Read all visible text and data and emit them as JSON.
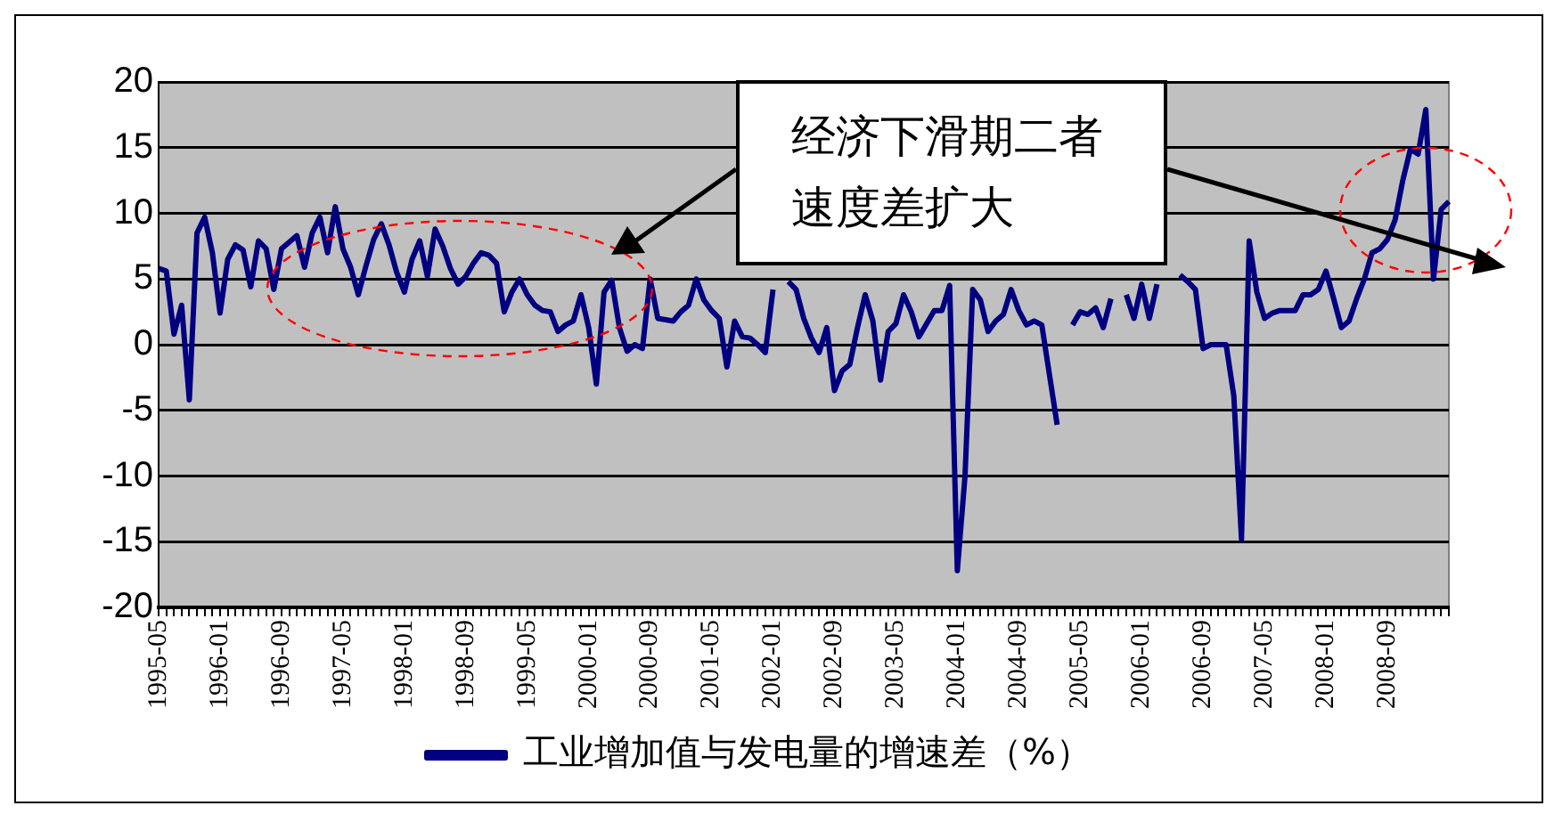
{
  "chart_data": {
    "type": "line",
    "categories": [
      "1995-05",
      null,
      null,
      null,
      null,
      null,
      null,
      null,
      "1996-01",
      null,
      null,
      null,
      null,
      null,
      null,
      null,
      "1996-09",
      null,
      null,
      null,
      null,
      null,
      null,
      null,
      "1997-05",
      null,
      null,
      null,
      null,
      null,
      null,
      null,
      "1998-01",
      null,
      null,
      null,
      null,
      null,
      null,
      null,
      "1998-09",
      null,
      null,
      null,
      null,
      null,
      null,
      null,
      "1999-05",
      null,
      null,
      null,
      null,
      null,
      null,
      null,
      "2000-01",
      null,
      null,
      null,
      null,
      null,
      null,
      null,
      "2000-09",
      null,
      null,
      null,
      null,
      null,
      null,
      null,
      "2001-05",
      null,
      null,
      null,
      null,
      null,
      null,
      null,
      "2002-01",
      null,
      null,
      null,
      null,
      null,
      null,
      null,
      "2002-09",
      null,
      null,
      null,
      null,
      null,
      null,
      null,
      "2003-05",
      null,
      null,
      null,
      null,
      null,
      null,
      null,
      "2004-01",
      null,
      null,
      null,
      null,
      null,
      null,
      null,
      "2004-09",
      null,
      null,
      null,
      null,
      null,
      null,
      null,
      "2005-05",
      null,
      null,
      null,
      null,
      null,
      null,
      null,
      "2006-01",
      null,
      null,
      null,
      null,
      null,
      null,
      null,
      "2006-09",
      null,
      null,
      null,
      null,
      null,
      null,
      null,
      "2007-05",
      null,
      null,
      null,
      null,
      null,
      null,
      null,
      "2008-01",
      null,
      null,
      null,
      null,
      null,
      null,
      null,
      "2008-09",
      null,
      null,
      null,
      null,
      null,
      null,
      null,
      null
    ],
    "series": [
      {
        "name": "工业增加值与发电量的增速差（%）",
        "color": "#000080",
        "values": [
          5.8,
          5.6,
          0.8,
          3.0,
          -4.2,
          8.5,
          9.7,
          7.0,
          2.4,
          6.5,
          7.6,
          7.2,
          4.4,
          7.9,
          7.3,
          4.2,
          7.3,
          7.8,
          8.3,
          5.9,
          8.5,
          9.7,
          7.0,
          10.5,
          7.3,
          5.9,
          3.8,
          6.0,
          8.0,
          9.2,
          7.6,
          5.5,
          4.0,
          6.5,
          7.9,
          5.2,
          8.8,
          7.5,
          5.8,
          4.6,
          5.2,
          6.2,
          7.0,
          6.8,
          6.2,
          2.5,
          4.0,
          5.0,
          3.8,
          3.0,
          2.6,
          2.5,
          1.0,
          1.5,
          1.8,
          3.8,
          1.3,
          -3.0,
          4.0,
          4.9,
          1.3,
          -0.5,
          0,
          -0.3,
          5.0,
          2.0,
          1.9,
          1.8,
          2.5,
          3.0,
          5.0,
          3.4,
          2.6,
          2.0,
          -1.7,
          1.8,
          0.6,
          0.5,
          0,
          -0.6,
          4.2,
          null,
          4.8,
          4.2,
          2.0,
          0.5,
          -0.6,
          1.3,
          -3.5,
          -2.0,
          -1.5,
          1.3,
          3.8,
          1.8,
          -2.7,
          1.0,
          1.6,
          3.8,
          2.5,
          0.6,
          1.6,
          2.6,
          2.6,
          4.5,
          -17.2,
          -10,
          4.2,
          3.4,
          1.0,
          1.8,
          2.3,
          4.2,
          2.6,
          1.5,
          1.8,
          1.5,
          -2.3,
          -6.1,
          null,
          1.5,
          2.5,
          2.3,
          2.8,
          1.3,
          3.5,
          null,
          3.8,
          2.0,
          4.6,
          2.0,
          4.6,
          null,
          null,
          5.3,
          4.8,
          4.2,
          -0.3,
          0,
          0,
          0,
          -3.9,
          -14.8,
          7.9,
          4.0,
          2.0,
          2.4,
          2.6,
          2.6,
          2.6,
          3.8,
          3.8,
          4.2,
          5.6,
          3.5,
          1.3,
          1.8,
          3.5,
          5.0,
          7.0,
          7.3,
          8.0,
          9.5,
          12.5,
          14.9,
          14.5,
          17.9,
          5.0,
          10.3,
          10.9
        ]
      }
    ],
    "ylim": [
      -20,
      20
    ],
    "yticks": [
      -20,
      -15,
      -10,
      -5,
      0,
      5,
      10,
      15,
      20
    ],
    "grid": "y",
    "legend": "bottom",
    "annotations": [
      "经济下滑期二者速度差扩大"
    ]
  }
}
